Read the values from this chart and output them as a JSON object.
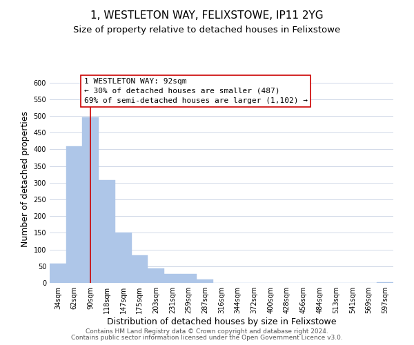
{
  "title": "1, WESTLETON WAY, FELIXSTOWE, IP11 2YG",
  "subtitle": "Size of property relative to detached houses in Felixstowe",
  "xlabel": "Distribution of detached houses by size in Felixstowe",
  "ylabel": "Number of detached properties",
  "bar_labels": [
    "34sqm",
    "62sqm",
    "90sqm",
    "118sqm",
    "147sqm",
    "175sqm",
    "203sqm",
    "231sqm",
    "259sqm",
    "287sqm",
    "316sqm",
    "344sqm",
    "372sqm",
    "400sqm",
    "428sqm",
    "456sqm",
    "484sqm",
    "513sqm",
    "541sqm",
    "569sqm",
    "597sqm"
  ],
  "bar_values": [
    57,
    410,
    497,
    307,
    150,
    82,
    44,
    26,
    26,
    10,
    0,
    0,
    0,
    0,
    0,
    0,
    0,
    0,
    0,
    0,
    2
  ],
  "bar_color": "#aec6e8",
  "bar_edge_color": "#aec6e8",
  "vline_x": 2,
  "vline_color": "#cc0000",
  "annotation_title": "1 WESTLETON WAY: 92sqm",
  "annotation_line1": "← 30% of detached houses are smaller (487)",
  "annotation_line2": "69% of semi-detached houses are larger (1,102) →",
  "annotation_box_color": "#ffffff",
  "annotation_box_edge": "#cc0000",
  "ylim": [
    0,
    620
  ],
  "yticks": [
    0,
    50,
    100,
    150,
    200,
    250,
    300,
    350,
    400,
    450,
    500,
    550,
    600
  ],
  "footer1": "Contains HM Land Registry data © Crown copyright and database right 2024.",
  "footer2": "Contains public sector information licensed under the Open Government Licence v3.0.",
  "bg_color": "#ffffff",
  "grid_color": "#d0d8e8",
  "title_fontsize": 11,
  "subtitle_fontsize": 9.5,
  "axis_label_fontsize": 9,
  "tick_fontsize": 7,
  "annotation_fontsize": 8,
  "footer_fontsize": 6.5
}
